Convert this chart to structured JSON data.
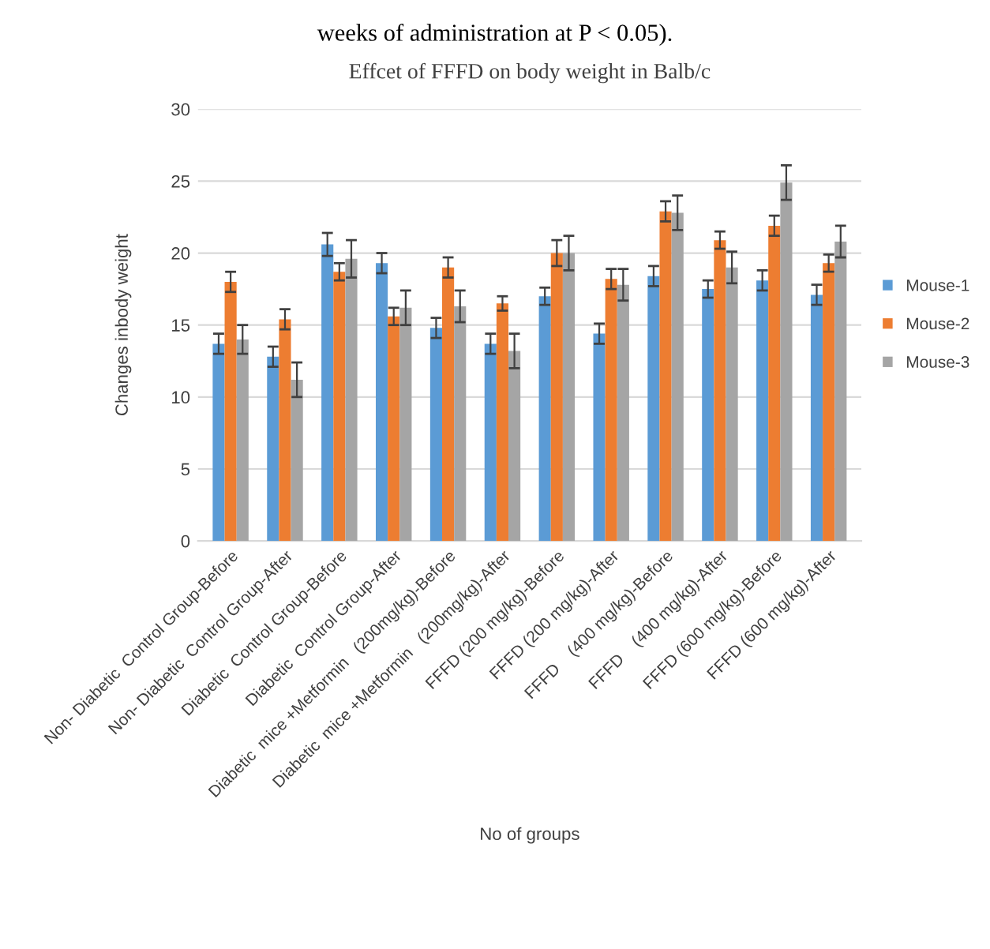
{
  "chart_data": {
    "type": "bar",
    "title": "Effcet of FFFD on body weight in Balb/c",
    "xlabel": "No of groups",
    "ylabel": "Changes inbody weight",
    "annotations": [
      "weeks of administration at P < 0.05)."
    ],
    "categories": [
      "Non- Diabetic  Control Group-Before",
      "Non- Diabetic  Control Group-After",
      "Diabetic  Control Group-Before",
      "Diabetic  Control Group-After",
      "Diabetic  mice +Metformin   (200mg/kg)-Before",
      "Diabetic  mice +Metformin   (200mg/kg)-After",
      "FFFD (200 mg/kg)-Before",
      "FFFD (200 mg/kg)-After",
      "FFFD    (400 mg/kg)-Before",
      "FFFD    (400 mg/kg)-After",
      "FFFD (600 mg/kg)-Before",
      "FFFD (600 mg/kg)-After"
    ],
    "series": [
      {
        "name": "Mouse-1",
        "color": "#5b9bd5",
        "values": [
          13.7,
          12.8,
          20.6,
          19.3,
          14.8,
          13.7,
          17.0,
          14.4,
          18.4,
          17.5,
          18.1,
          17.1
        ],
        "errors": [
          0.7,
          0.7,
          0.8,
          0.7,
          0.7,
          0.7,
          0.6,
          0.7,
          0.7,
          0.6,
          0.7,
          0.7
        ]
      },
      {
        "name": "Mouse-2",
        "color": "#ed7d31",
        "values": [
          18.0,
          15.4,
          18.7,
          15.6,
          19.0,
          16.5,
          20.0,
          18.2,
          22.9,
          20.9,
          21.9,
          19.3
        ],
        "errors": [
          0.7,
          0.7,
          0.6,
          0.6,
          0.7,
          0.5,
          0.9,
          0.7,
          0.7,
          0.6,
          0.7,
          0.6
        ]
      },
      {
        "name": "Mouse-3",
        "color": "#a5a5a5",
        "values": [
          14.0,
          11.2,
          19.6,
          16.2,
          16.3,
          13.2,
          20.0,
          17.8,
          22.8,
          19.0,
          24.9,
          20.8
        ],
        "errors": [
          1.0,
          1.2,
          1.3,
          1.2,
          1.1,
          1.2,
          1.2,
          1.1,
          1.2,
          1.1,
          1.2,
          1.1
        ]
      }
    ],
    "ylim": [
      0,
      30
    ],
    "yticks": [
      0,
      5,
      10,
      15,
      20,
      25,
      30
    ],
    "grid": "y",
    "legend": "right"
  }
}
